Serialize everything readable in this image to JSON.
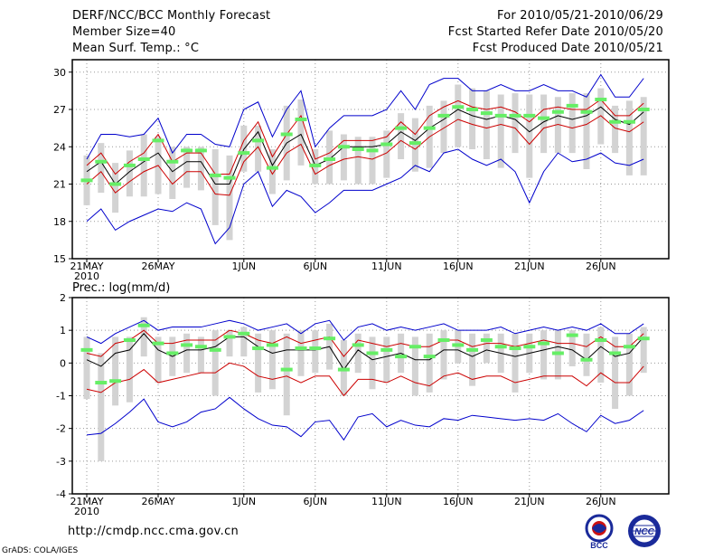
{
  "header": {
    "title": "DERF/NCC/BCC Monthly Forecast",
    "member_size": "Member Size=40",
    "variable": "Mean Surf. Temp.: °C",
    "forecast_period": "For 2010/05/21-2010/06/29",
    "refer_date": "Fcst Started Refer Date 2010/05/20",
    "produced_date": "Fcst Produced Date 2010/05/21"
  },
  "footer": {
    "url": "http://cmdp.ncc.cma.gov.cn",
    "credit": "GrADS: COLA/IGES",
    "logo_left_text": "BCC",
    "logo_right_text": "NCC"
  },
  "colors": {
    "envelope": "#0000cc",
    "spread": "#cc0000",
    "mean": "#000000",
    "box": "#d3d3d3",
    "marker": "#66ee66",
    "grid": "#999999"
  },
  "chart_data": [
    {
      "type": "line",
      "title": "Mean Surf. Temp.: °C",
      "x": [
        "21MAY",
        "22MAY",
        "23MAY",
        "24MAY",
        "25MAY",
        "26MAY",
        "27MAY",
        "28MAY",
        "29MAY",
        "30MAY",
        "31MAY",
        "1JUN",
        "2JUN",
        "3JUN",
        "4JUN",
        "5JUN",
        "6JUN",
        "7JUN",
        "8JUN",
        "9JUN",
        "10JUN",
        "11JUN",
        "12JUN",
        "13JUN",
        "14JUN",
        "15JUN",
        "16JUN",
        "17JUN",
        "18JUN",
        "19JUN",
        "20JUN",
        "21JUN",
        "22JUN",
        "23JUN",
        "24JUN",
        "25JUN",
        "26JUN",
        "27JUN",
        "28JUN",
        "29JUN"
      ],
      "tick_labels": [
        "21MAY",
        "26MAY",
        "1JUN",
        "6JUN",
        "11JUN",
        "16JUN",
        "21JUN",
        "26JUN"
      ],
      "first_tick_year": "2010",
      "ylim": [
        15,
        31
      ],
      "yticks": [
        15,
        18,
        21,
        24,
        27,
        30
      ],
      "series": [
        {
          "name": "max",
          "values": [
            23.0,
            25.0,
            25.0,
            24.8,
            25.0,
            26.3,
            23.5,
            25.0,
            25.0,
            24.2,
            24.0,
            27.0,
            27.6,
            24.8,
            27.0,
            28.5,
            24.0,
            25.5,
            26.5,
            26.5,
            26.5,
            27.0,
            28.5,
            27.0,
            29.0,
            29.5,
            29.5,
            28.5,
            28.5,
            29.0,
            28.5,
            28.5,
            29.0,
            28.5,
            28.5,
            28.0,
            29.8,
            28.0,
            28.0,
            29.5
          ]
        },
        {
          "name": "upper",
          "values": [
            22.5,
            23.5,
            21.8,
            22.8,
            23.5,
            25.0,
            22.8,
            23.5,
            23.5,
            21.8,
            21.8,
            24.5,
            26.0,
            23.2,
            25.0,
            26.5,
            23.0,
            23.5,
            24.5,
            24.5,
            24.5,
            24.8,
            26.0,
            25.0,
            26.5,
            27.2,
            27.7,
            27.2,
            27.0,
            27.2,
            26.8,
            26.0,
            27.0,
            27.2,
            27.0,
            27.0,
            27.8,
            26.5,
            26.5,
            27.5
          ]
        },
        {
          "name": "mean",
          "values": [
            22.0,
            22.8,
            21.0,
            22.0,
            22.8,
            23.5,
            22.0,
            22.8,
            22.8,
            21.0,
            21.0,
            23.8,
            25.2,
            22.5,
            24.3,
            25.0,
            22.5,
            23.0,
            24.0,
            24.0,
            24.0,
            24.2,
            25.2,
            24.5,
            25.5,
            26.2,
            27.0,
            26.5,
            26.2,
            26.5,
            26.2,
            25.2,
            26.0,
            26.5,
            26.2,
            26.5,
            27.2,
            26.2,
            25.8,
            26.8
          ]
        },
        {
          "name": "lower",
          "values": [
            21.0,
            22.0,
            20.3,
            21.2,
            22.0,
            22.5,
            21.0,
            22.0,
            22.0,
            20.2,
            20.1,
            22.8,
            24.0,
            21.8,
            23.5,
            24.2,
            21.8,
            22.5,
            23.0,
            23.2,
            23.0,
            23.5,
            24.5,
            23.8,
            24.8,
            25.5,
            26.2,
            25.8,
            25.5,
            25.8,
            25.5,
            24.2,
            25.5,
            25.8,
            25.5,
            25.8,
            26.5,
            25.5,
            25.2,
            26.0
          ]
        },
        {
          "name": "min",
          "values": [
            18.0,
            19.0,
            17.3,
            18.0,
            18.5,
            19.0,
            18.8,
            19.5,
            19.0,
            16.2,
            17.5,
            21.0,
            22.0,
            19.2,
            20.5,
            20.0,
            18.7,
            19.5,
            20.5,
            20.5,
            20.5,
            21.0,
            21.5,
            22.5,
            22.0,
            23.5,
            23.8,
            23.0,
            22.5,
            23.0,
            22.0,
            19.5,
            22.0,
            23.5,
            22.8,
            23.0,
            23.5,
            22.7,
            22.5,
            23.0
          ]
        }
      ],
      "box_low": [
        19.3,
        20.3,
        18.7,
        20.0,
        20.0,
        20.2,
        19.8,
        20.7,
        20.5,
        17.7,
        16.5,
        22.0,
        22.0,
        20.2,
        21.3,
        22.5,
        21.0,
        21.0,
        21.3,
        21.0,
        21.0,
        21.5,
        23.0,
        22.0,
        22.3,
        23.5,
        24.0,
        23.8,
        23.0,
        22.3,
        23.5,
        21.5,
        23.5,
        23.5,
        23.5,
        22.2,
        24.2,
        23.5,
        21.7,
        21.7
      ],
      "box_high": [
        23.3,
        24.3,
        22.7,
        23.7,
        25.0,
        24.8,
        24.0,
        24.0,
        24.0,
        23.8,
        23.3,
        25.7,
        25.7,
        23.8,
        27.3,
        27.8,
        23.8,
        25.3,
        25.0,
        24.8,
        24.8,
        25.3,
        26.7,
        26.3,
        27.3,
        27.7,
        29.0,
        28.7,
        28.5,
        28.2,
        28.3,
        28.2,
        28.2,
        28.0,
        28.3,
        28.3,
        28.7,
        27.3,
        27.7,
        28.0
      ],
      "markers": [
        21.3,
        22.8,
        21.0,
        22.5,
        23.0,
        24.5,
        22.8,
        23.7,
        23.7,
        21.7,
        21.5,
        23.5,
        24.5,
        22.3,
        25.0,
        26.2,
        22.5,
        23.0,
        24.0,
        23.8,
        23.7,
        24.2,
        25.5,
        24.3,
        25.5,
        26.5,
        27.2,
        27.0,
        26.7,
        26.5,
        26.5,
        26.5,
        26.3,
        26.8,
        27.3,
        26.8,
        27.8,
        26.0,
        26.0,
        27.0
      ]
    },
    {
      "type": "line",
      "title": "Prec.: log(mm/d)",
      "x": [
        "21MAY",
        "22MAY",
        "23MAY",
        "24MAY",
        "25MAY",
        "26MAY",
        "27MAY",
        "28MAY",
        "29MAY",
        "30MAY",
        "31MAY",
        "1JUN",
        "2JUN",
        "3JUN",
        "4JUN",
        "5JUN",
        "6JUN",
        "7JUN",
        "8JUN",
        "9JUN",
        "10JUN",
        "11JUN",
        "12JUN",
        "13JUN",
        "14JUN",
        "15JUN",
        "16JUN",
        "17JUN",
        "18JUN",
        "19JUN",
        "20JUN",
        "21JUN",
        "22JUN",
        "23JUN",
        "24JUN",
        "25JUN",
        "26JUN",
        "27JUN",
        "28JUN",
        "29JUN"
      ],
      "tick_labels": [
        "21MAY",
        "26MAY",
        "1JUN",
        "6JUN",
        "11JUN",
        "16JUN",
        "21JUN",
        "26JUN"
      ],
      "first_tick_year": "2010",
      "ylim": [
        -4,
        2
      ],
      "yticks": [
        -4,
        -3,
        -2,
        -1,
        0,
        1,
        2
      ],
      "series": [
        {
          "name": "max",
          "values": [
            0.8,
            0.6,
            0.9,
            1.1,
            1.3,
            1.0,
            1.1,
            1.1,
            1.1,
            1.2,
            1.3,
            1.2,
            1.0,
            1.1,
            1.2,
            0.9,
            1.2,
            1.3,
            0.7,
            1.1,
            1.2,
            1.0,
            1.1,
            1.0,
            1.1,
            1.2,
            1.0,
            1.0,
            1.0,
            1.1,
            0.9,
            1.0,
            1.1,
            1.0,
            1.1,
            1.0,
            1.2,
            0.9,
            0.9,
            1.2
          ]
        },
        {
          "name": "upper",
          "values": [
            0.3,
            0.2,
            0.6,
            0.7,
            1.0,
            0.6,
            0.6,
            0.7,
            0.7,
            0.7,
            1.0,
            0.9,
            0.7,
            0.6,
            0.8,
            0.6,
            0.7,
            0.8,
            0.2,
            0.7,
            0.6,
            0.5,
            0.6,
            0.5,
            0.5,
            0.7,
            0.7,
            0.5,
            0.6,
            0.6,
            0.5,
            0.6,
            0.7,
            0.6,
            0.6,
            0.5,
            0.8,
            0.5,
            0.5,
            0.9
          ]
        },
        {
          "name": "mean",
          "values": [
            0.1,
            -0.1,
            0.3,
            0.4,
            0.9,
            0.4,
            0.2,
            0.4,
            0.4,
            0.5,
            0.8,
            0.8,
            0.5,
            0.3,
            0.4,
            0.4,
            0.4,
            0.5,
            -0.2,
            0.4,
            0.1,
            0.2,
            0.3,
            0.1,
            0.1,
            0.4,
            0.4,
            0.2,
            0.4,
            0.3,
            0.2,
            0.3,
            0.4,
            0.5,
            0.4,
            0.1,
            0.5,
            0.2,
            0.3,
            0.8
          ]
        },
        {
          "name": "lower",
          "values": [
            -0.8,
            -0.9,
            -0.6,
            -0.5,
            -0.2,
            -0.6,
            -0.5,
            -0.4,
            -0.3,
            -0.3,
            0.0,
            -0.1,
            -0.4,
            -0.5,
            -0.4,
            -0.6,
            -0.4,
            -0.4,
            -1.0,
            -0.5,
            -0.5,
            -0.6,
            -0.4,
            -0.6,
            -0.7,
            -0.4,
            -0.3,
            -0.5,
            -0.4,
            -0.4,
            -0.6,
            -0.5,
            -0.4,
            -0.4,
            -0.4,
            -0.7,
            -0.3,
            -0.6,
            -0.6,
            -0.1
          ]
        },
        {
          "name": "min",
          "values": [
            -2.2,
            -2.15,
            -1.85,
            -1.5,
            -1.1,
            -1.8,
            -1.95,
            -1.8,
            -1.5,
            -1.4,
            -1.05,
            -1.4,
            -1.7,
            -1.9,
            -1.95,
            -2.25,
            -1.8,
            -1.75,
            -2.35,
            -1.65,
            -1.55,
            -1.95,
            -1.75,
            -1.9,
            -1.95,
            -1.7,
            -1.75,
            -1.6,
            -1.65,
            -1.7,
            -1.75,
            -1.7,
            -1.75,
            -1.55,
            -1.85,
            -2.1,
            -1.6,
            -1.85,
            -1.75,
            -1.45
          ]
        },
        {
          "name": "marker",
          "values": [
            0.4,
            -0.6,
            -0.55,
            0.7,
            1.15,
            0.6,
            0.3,
            0.55,
            0.5,
            0.4,
            0.8,
            0.9,
            0.45,
            0.55,
            -0.2,
            0.45,
            0.45,
            0.75,
            -0.2,
            0.55,
            0.3,
            0.4,
            0.2,
            0.5,
            0.2,
            0.7,
            0.55,
            0.4,
            0.7,
            0.5,
            0.45,
            0.5,
            0.6,
            0.3,
            0.85,
            0.1,
            0.7,
            0.3,
            0.5,
            0.75
          ]
        }
      ],
      "box_low": [
        -1.1,
        -3.0,
        -1.3,
        -1.2,
        0.2,
        -0.6,
        -0.4,
        -0.3,
        -0.3,
        -1.0,
        0.2,
        0.2,
        -0.9,
        -0.8,
        -1.6,
        -0.4,
        -0.3,
        -0.2,
        -1.0,
        -0.3,
        -0.8,
        -0.6,
        -0.3,
        -1.0,
        -0.9,
        -0.5,
        0.0,
        -0.7,
        0.0,
        -0.3,
        -0.9,
        -0.3,
        -0.5,
        -0.5,
        -0.1,
        -0.4,
        -0.6,
        -1.4,
        -1.0,
        -0.3
      ],
      "box_high": [
        0.8,
        0.3,
        0.8,
        0.8,
        1.4,
        0.8,
        0.8,
        0.9,
        0.8,
        1.0,
        1.0,
        1.1,
        0.9,
        1.0,
        0.9,
        1.0,
        1.0,
        1.2,
        0.7,
        0.9,
        0.8,
        0.8,
        0.9,
        0.8,
        0.9,
        1.0,
        1.0,
        0.9,
        0.9,
        0.9,
        0.9,
        0.9,
        1.0,
        1.0,
        1.0,
        0.9,
        1.1,
        0.8,
        0.9,
        1.1
      ]
    }
  ]
}
